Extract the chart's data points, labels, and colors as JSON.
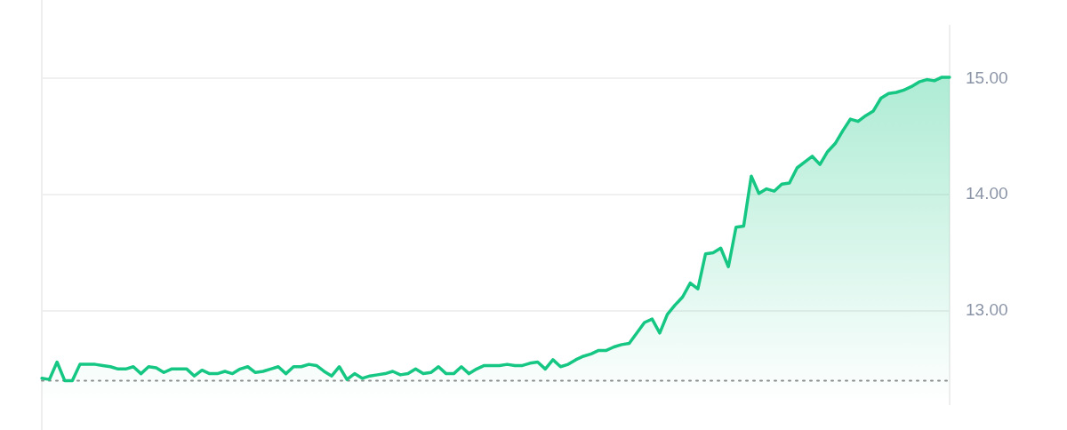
{
  "chart_data": {
    "type": "area",
    "categories": [
      null,
      null,
      null,
      null,
      null,
      null,
      null,
      null,
      null,
      null,
      null,
      null,
      null,
      null,
      null,
      null,
      null,
      null,
      null,
      null,
      null,
      null,
      null,
      null,
      null,
      null,
      null,
      null,
      null,
      null,
      null,
      null,
      null,
      null,
      null,
      null,
      null,
      null,
      null,
      null,
      null,
      null,
      null,
      null,
      null,
      null,
      null,
      null,
      null,
      null,
      null,
      null,
      null,
      null,
      null,
      null,
      null,
      null,
      null,
      null,
      null,
      null,
      null,
      null,
      null,
      null,
      null,
      null,
      null,
      null,
      null,
      null,
      null,
      null,
      null,
      null,
      null,
      null,
      null,
      null,
      null,
      null,
      null,
      null,
      null,
      null,
      null,
      null,
      null,
      null,
      null,
      null,
      null,
      null,
      null,
      null,
      null,
      null,
      null,
      null,
      null,
      null,
      null,
      null,
      null,
      null,
      null,
      null,
      null,
      null,
      null,
      null,
      null,
      null,
      null,
      null,
      null,
      null,
      null,
      null
    ],
    "series": [
      {
        "color": "#16c784",
        "values": [
          12.42,
          12.41,
          12.56,
          12.4,
          12.4,
          12.54,
          12.54,
          12.54,
          12.53,
          12.52,
          12.5,
          12.5,
          12.52,
          12.46,
          12.52,
          12.51,
          12.47,
          12.5,
          12.5,
          12.5,
          12.44,
          12.49,
          12.46,
          12.46,
          12.48,
          12.46,
          12.5,
          12.52,
          12.47,
          12.48,
          12.5,
          12.52,
          12.46,
          12.52,
          12.52,
          12.54,
          12.53,
          12.48,
          12.44,
          12.52,
          12.41,
          12.46,
          12.42,
          12.44,
          12.45,
          12.46,
          12.48,
          12.45,
          12.46,
          12.5,
          12.46,
          12.47,
          12.52,
          12.46,
          12.46,
          12.52,
          12.46,
          12.5,
          12.53,
          12.53,
          12.53,
          12.54,
          12.53,
          12.53,
          12.55,
          12.56,
          12.5,
          12.58,
          12.52,
          12.54,
          12.58,
          12.61,
          12.63,
          12.66,
          12.66,
          12.69,
          12.71,
          12.72,
          12.81,
          12.9,
          12.93,
          12.81,
          12.97,
          13.05,
          13.12,
          13.24,
          13.19,
          13.49,
          13.5,
          13.54,
          13.38,
          13.72,
          13.73,
          14.16,
          14.01,
          14.05,
          14.03,
          14.09,
          14.1,
          14.23,
          14.28,
          14.33,
          14.26,
          14.37,
          14.44,
          14.55,
          14.65,
          14.63,
          14.68,
          14.72,
          14.83,
          14.87,
          14.88,
          14.9,
          14.93,
          14.97,
          14.99,
          14.98,
          15.01,
          15.01
        ]
      }
    ],
    "ylim": [
      12.2,
      15.45
    ],
    "yticks": [
      {
        "value": 13,
        "label": "13.00"
      },
      {
        "value": 14,
        "label": "14.00"
      },
      {
        "value": 15,
        "label": "15.00"
      }
    ],
    "grid": "y",
    "legend": false,
    "tick_labels": "y",
    "marker": "none",
    "line_style": "solid",
    "ref_lines": [
      {
        "axis": "y",
        "value": 12.4,
        "color": "#8e8e8e",
        "line_style": "dotted"
      }
    ]
  }
}
